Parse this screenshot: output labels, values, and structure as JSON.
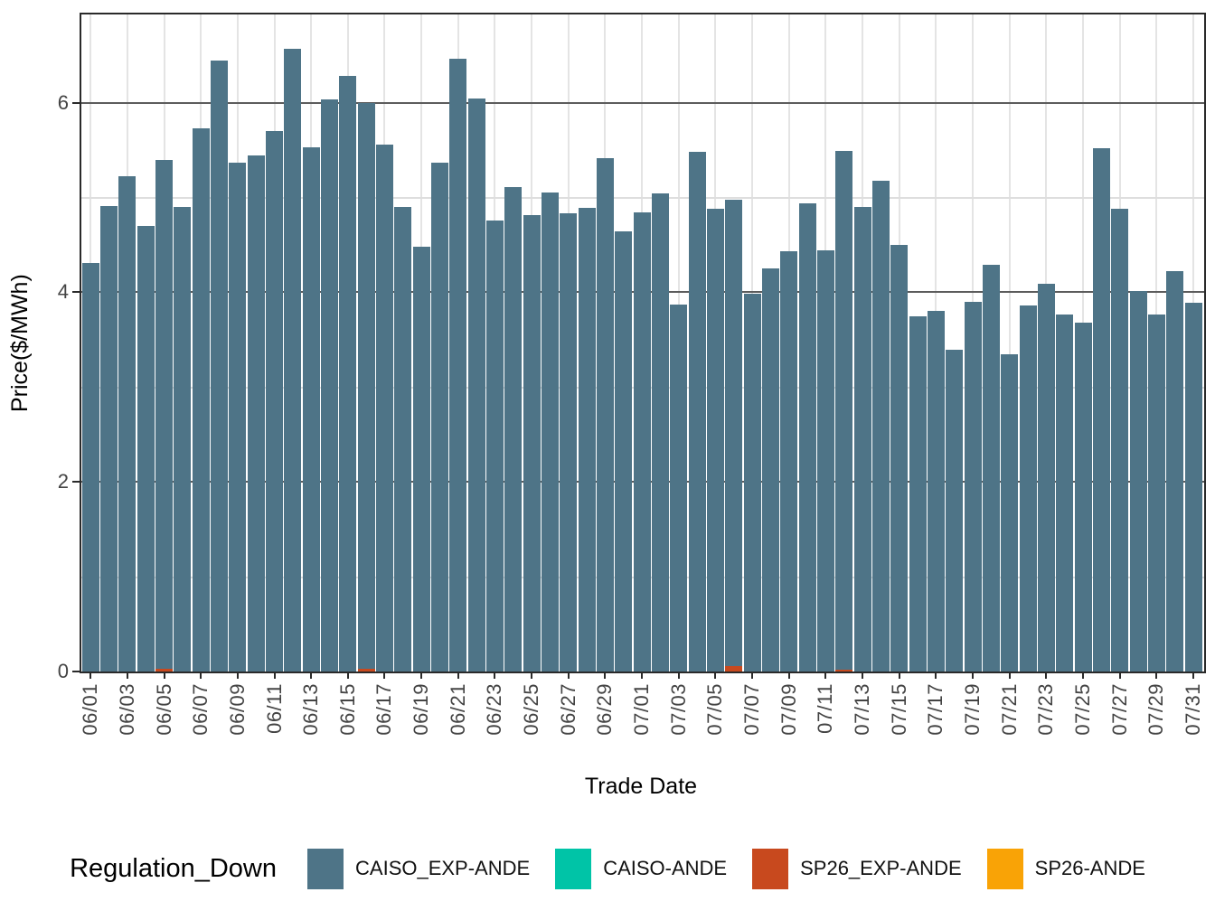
{
  "legend": {
    "title": "Regulation_Down"
  },
  "chart_data": {
    "type": "bar",
    "title": "",
    "xlabel": "Trade Date",
    "ylabel": "Price($/MWh)",
    "ylim": [
      0,
      6.93
    ],
    "yticks": [
      0,
      2,
      4,
      6
    ],
    "ygrid_minor": [
      1,
      3,
      5
    ],
    "grid": "on",
    "legend_position": "bottom",
    "categories": [
      "06/01",
      "06/02",
      "06/03",
      "06/04",
      "06/05",
      "06/06",
      "06/07",
      "06/08",
      "06/09",
      "06/10",
      "06/11",
      "06/12",
      "06/13",
      "06/14",
      "06/15",
      "06/16",
      "06/17",
      "06/18",
      "06/19",
      "06/20",
      "06/21",
      "06/22",
      "06/23",
      "06/24",
      "06/25",
      "06/26",
      "06/27",
      "06/28",
      "06/29",
      "06/30",
      "07/01",
      "07/02",
      "07/03",
      "07/04",
      "07/05",
      "07/06",
      "07/07",
      "07/08",
      "07/09",
      "07/10",
      "07/11",
      "07/12",
      "07/13",
      "07/14",
      "07/15",
      "07/16",
      "07/17",
      "07/18",
      "07/19",
      "07/20",
      "07/21",
      "07/22",
      "07/23",
      "07/24",
      "07/25",
      "07/26",
      "07/27",
      "07/28",
      "07/29",
      "07/30",
      "07/31"
    ],
    "xticklabels": [
      "06/01",
      "06/03",
      "06/05",
      "06/07",
      "06/09",
      "06/11",
      "06/13",
      "06/15",
      "06/17",
      "06/19",
      "06/21",
      "06/23",
      "06/25",
      "06/27",
      "06/29",
      "07/01",
      "07/03",
      "07/05",
      "07/07",
      "07/09",
      "07/11",
      "07/13",
      "07/15",
      "07/17",
      "07/19",
      "07/21",
      "07/23",
      "07/25",
      "07/27",
      "07/29",
      "07/31"
    ],
    "series": [
      {
        "name": "CAISO_EXP-ANDE",
        "color": "#4E7487",
        "values": [
          4.31,
          4.91,
          5.22,
          4.7,
          5.4,
          4.9,
          5.73,
          6.44,
          5.37,
          5.44,
          5.7,
          6.57,
          5.53,
          6.03,
          6.28,
          6.0,
          5.56,
          4.9,
          4.48,
          5.37,
          6.46,
          6.04,
          4.76,
          5.11,
          4.81,
          5.05,
          4.83,
          4.89,
          5.41,
          4.64,
          4.84,
          5.04,
          3.87,
          5.48,
          4.88,
          4.98,
          3.98,
          4.25,
          4.43,
          4.94,
          4.44,
          5.49,
          4.9,
          5.18,
          4.5,
          3.75,
          3.8,
          3.39,
          3.9,
          4.29,
          3.35,
          3.86,
          4.09,
          3.77,
          3.68,
          5.52,
          4.88,
          4.01,
          3.77,
          4.22,
          3.89
        ]
      },
      {
        "name": "CAISO-ANDE",
        "color": "#00C4A7",
        "values": [
          0,
          0,
          0,
          0,
          0,
          0,
          0,
          0,
          0,
          0,
          0,
          0,
          0,
          0,
          0,
          0,
          0,
          0,
          0,
          0,
          0,
          0,
          0,
          0,
          0,
          0,
          0,
          0,
          0,
          0,
          0,
          0,
          0,
          0,
          0,
          0,
          0,
          0,
          0,
          0,
          0,
          0,
          0,
          0,
          0,
          0,
          0,
          0,
          0,
          0,
          0,
          0,
          0,
          0,
          0,
          0,
          0,
          0,
          0,
          0,
          0
        ]
      },
      {
        "name": "SP26_EXP-ANDE",
        "color": "#C8491E",
        "values": [
          0,
          0,
          0,
          0,
          0.03,
          0,
          0,
          0,
          0,
          0,
          0,
          0,
          0,
          0,
          0,
          0.03,
          0,
          0,
          0,
          0,
          0,
          0,
          0,
          0,
          0,
          0,
          0,
          0,
          0,
          0,
          0,
          0,
          0,
          0,
          0,
          0.06,
          0,
          0,
          0,
          0,
          0,
          0.02,
          0,
          0,
          0,
          0,
          0,
          0,
          0,
          0,
          0,
          0,
          0,
          0,
          0,
          0,
          0,
          0,
          0,
          0,
          0
        ]
      },
      {
        "name": "SP26-ANDE",
        "color": "#F9A306",
        "values": [
          0,
          0,
          0,
          0,
          0,
          0,
          0,
          0,
          0,
          0,
          0,
          0,
          0,
          0,
          0,
          0,
          0,
          0,
          0,
          0,
          0,
          0,
          0,
          0,
          0,
          0,
          0,
          0,
          0,
          0,
          0,
          0,
          0,
          0,
          0,
          0,
          0,
          0,
          0,
          0,
          0,
          0,
          0,
          0,
          0,
          0,
          0,
          0,
          0,
          0,
          0,
          0,
          0,
          0,
          0,
          0,
          0,
          0,
          0,
          0,
          0
        ]
      }
    ]
  }
}
